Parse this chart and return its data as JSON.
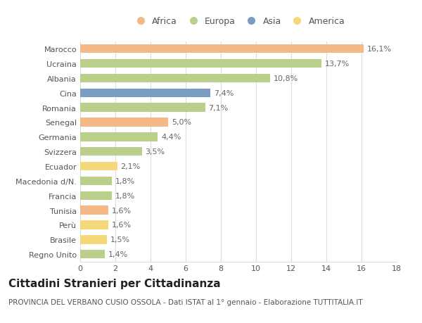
{
  "categories": [
    "Marocco",
    "Ucraina",
    "Albania",
    "Cina",
    "Romania",
    "Senegal",
    "Germania",
    "Svizzera",
    "Ecuador",
    "Macedonia d/N.",
    "Francia",
    "Tunisia",
    "Perù",
    "Brasile",
    "Regno Unito"
  ],
  "values": [
    16.1,
    13.7,
    10.8,
    7.4,
    7.1,
    5.0,
    4.4,
    3.5,
    2.1,
    1.8,
    1.8,
    1.6,
    1.6,
    1.5,
    1.4
  ],
  "labels": [
    "16,1%",
    "13,7%",
    "10,8%",
    "7,4%",
    "7,1%",
    "5,0%",
    "4,4%",
    "3,5%",
    "2,1%",
    "1,8%",
    "1,8%",
    "1,6%",
    "1,6%",
    "1,5%",
    "1,4%"
  ],
  "continents": [
    "Africa",
    "Europa",
    "Europa",
    "Asia",
    "Europa",
    "Africa",
    "Europa",
    "Europa",
    "America",
    "Europa",
    "Europa",
    "Africa",
    "America",
    "America",
    "Europa"
  ],
  "colors": {
    "Africa": "#F5B887",
    "Europa": "#BACF8A",
    "Asia": "#7B9DC4",
    "America": "#F5D87A"
  },
  "legend_order": [
    "Africa",
    "Europa",
    "Asia",
    "America"
  ],
  "xlim": [
    0,
    18
  ],
  "xticks": [
    0,
    2,
    4,
    6,
    8,
    10,
    12,
    14,
    16,
    18
  ],
  "title": "Cittadini Stranieri per Cittadinanza",
  "subtitle": "PROVINCIA DEL VERBANO CUSIO OSSOLA - Dati ISTAT al 1° gennaio - Elaborazione TUTTITALIA.IT",
  "background_color": "#ffffff",
  "grid_color": "#dddddd",
  "bar_height": 0.6,
  "title_fontsize": 11,
  "subtitle_fontsize": 7.5,
  "label_fontsize": 8,
  "tick_fontsize": 8,
  "legend_fontsize": 9
}
